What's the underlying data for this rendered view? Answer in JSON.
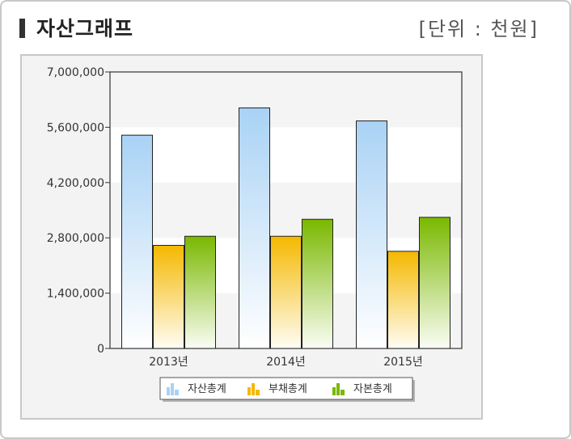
{
  "header": {
    "title": "자산그래프",
    "unit": "[단위 : 천원]"
  },
  "colors": {
    "asset": "#a9d2f5",
    "liability": "#f5b800",
    "equity": "#7ab800"
  },
  "chart_data": {
    "type": "bar",
    "categories": [
      "2013년",
      "2014년",
      "2015년"
    ],
    "series": [
      {
        "name": "자산총계",
        "values": [
          5400000,
          6090000,
          5760000
        ]
      },
      {
        "name": "부채총계",
        "values": [
          2610000,
          2840000,
          2460000
        ]
      },
      {
        "name": "자본총계",
        "values": [
          2840000,
          3270000,
          3320000
        ]
      }
    ],
    "ylim": [
      0,
      7000000
    ],
    "yticks": [
      "0",
      "1,400,000",
      "2,800,000",
      "4,200,000",
      "5,600,000",
      "7,000,000"
    ],
    "ytick_values": [
      0,
      1400000,
      2800000,
      4200000,
      5600000,
      7000000
    ],
    "legend_position": "bottom"
  }
}
